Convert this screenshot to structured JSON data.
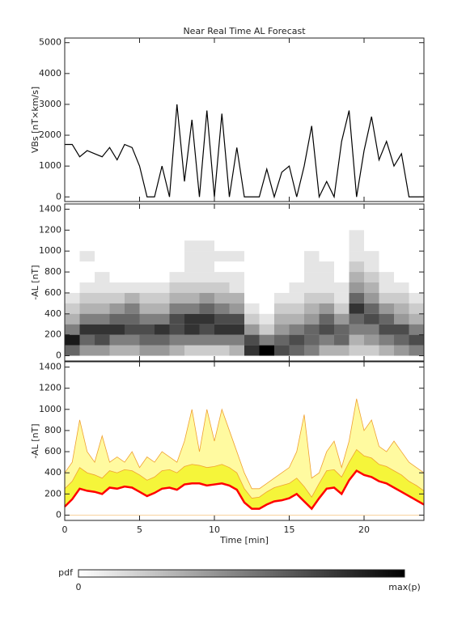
{
  "chart_data": [
    {
      "type": "line",
      "title": "Near Real Time AL Forecast",
      "ylabel": "VBs [nT×km/s]",
      "xlim": [
        0,
        24
      ],
      "xticks": [
        0,
        5,
        10,
        15,
        20
      ],
      "ylim": [
        -150,
        5150
      ],
      "yticks": [
        0,
        1000,
        2000,
        3000,
        4000,
        5000
      ],
      "x": [
        0,
        0.5,
        1,
        1.5,
        2,
        2.5,
        3,
        3.5,
        4,
        4.5,
        5,
        5.5,
        6,
        6.5,
        7,
        7.5,
        8,
        8.5,
        9,
        9.5,
        10,
        10.5,
        11,
        11.5,
        12,
        12.5,
        13,
        13.5,
        14,
        14.5,
        15,
        15.5,
        16,
        16.5,
        17,
        17.5,
        18,
        18.5,
        19,
        19.5,
        20,
        20.5,
        21,
        21.5,
        22,
        22.5,
        23,
        23.5,
        24
      ],
      "series": [
        {
          "color": "#000000",
          "values": [
            1700,
            1700,
            1300,
            1500,
            1400,
            1300,
            1600,
            1200,
            1700,
            1600,
            1000,
            0,
            0,
            1000,
            0,
            3000,
            500,
            2500,
            0,
            2800,
            0,
            2700,
            0,
            1600,
            0,
            0,
            0,
            900,
            0,
            800,
            1000,
            0,
            1000,
            2300,
            0,
            500,
            0,
            1800,
            2800,
            0,
            1500,
            2600,
            1200,
            1800,
            1000,
            1400,
            0,
            0,
            0
          ]
        }
      ]
    },
    {
      "type": "heatmap",
      "ylabel": "-AL [nT]",
      "xlim": [
        0,
        24
      ],
      "xticks": [
        0,
        5,
        10,
        15,
        20
      ],
      "ylim": [
        -50,
        1450
      ],
      "yticks": [
        0,
        200,
        400,
        600,
        800,
        1000,
        1200,
        1400
      ],
      "cmap": [
        "#ffffff",
        "#000000"
      ],
      "x_edges": [
        0,
        1,
        2,
        3,
        4,
        5,
        6,
        7,
        8,
        9,
        10,
        11,
        12,
        13,
        14,
        15,
        16,
        17,
        18,
        19,
        20,
        21,
        22,
        23,
        24
      ],
      "y_edges": [
        0,
        100,
        200,
        300,
        400,
        500,
        600,
        700,
        800,
        900,
        1000,
        1100,
        1200
      ],
      "z": [
        [
          0.6,
          0.9,
          0.5,
          0.3,
          0.2,
          0.1,
          0,
          0,
          0,
          0,
          0,
          0
        ],
        [
          0.4,
          0.6,
          0.8,
          0.5,
          0.3,
          0.2,
          0.1,
          0,
          0,
          0.1,
          0,
          0
        ],
        [
          0.4,
          0.7,
          0.8,
          0.5,
          0.3,
          0.2,
          0.1,
          0.1,
          0,
          0,
          0,
          0
        ],
        [
          0.3,
          0.5,
          0.8,
          0.6,
          0.4,
          0.2,
          0.1,
          0,
          0,
          0,
          0,
          0
        ],
        [
          0.3,
          0.5,
          0.7,
          0.6,
          0.5,
          0.3,
          0.1,
          0,
          0,
          0,
          0,
          0
        ],
        [
          0.4,
          0.6,
          0.7,
          0.5,
          0.3,
          0.2,
          0.1,
          0,
          0,
          0,
          0,
          0
        ],
        [
          0.4,
          0.6,
          0.8,
          0.5,
          0.3,
          0.2,
          0.1,
          0,
          0,
          0,
          0,
          0
        ],
        [
          0.3,
          0.5,
          0.7,
          0.7,
          0.5,
          0.3,
          0.2,
          0.1,
          0,
          0,
          0,
          0
        ],
        [
          0.2,
          0.5,
          0.8,
          0.8,
          0.5,
          0.3,
          0.2,
          0.1,
          0.1,
          0.1,
          0.1,
          0
        ],
        [
          0.2,
          0.5,
          0.7,
          0.8,
          0.6,
          0.4,
          0.2,
          0.1,
          0.1,
          0.1,
          0.1,
          0
        ],
        [
          0.2,
          0.5,
          0.8,
          0.7,
          0.5,
          0.3,
          0.2,
          0.1,
          0,
          0.1,
          0,
          0
        ],
        [
          0.3,
          0.5,
          0.8,
          0.7,
          0.4,
          0.3,
          0.1,
          0.1,
          0,
          0.1,
          0,
          0
        ],
        [
          0.8,
          0.7,
          0.4,
          0.2,
          0.1,
          0,
          0,
          0,
          0,
          0,
          0,
          0
        ],
        [
          1,
          0.5,
          0.2,
          0.1,
          0,
          0,
          0,
          0,
          0,
          0,
          0,
          0
        ],
        [
          0.7,
          0.6,
          0.4,
          0.3,
          0.2,
          0.1,
          0,
          0,
          0,
          0,
          0,
          0
        ],
        [
          0.6,
          0.7,
          0.5,
          0.3,
          0.2,
          0.1,
          0.1,
          0,
          0,
          0,
          0,
          0
        ],
        [
          0.5,
          0.6,
          0.6,
          0.4,
          0.3,
          0.2,
          0.1,
          0.1,
          0.1,
          0.1,
          0,
          0
        ],
        [
          0.3,
          0.5,
          0.7,
          0.6,
          0.4,
          0.2,
          0.1,
          0.1,
          0.1,
          0,
          0,
          0
        ],
        [
          0.3,
          0.6,
          0.6,
          0.4,
          0.2,
          0.1,
          0.1,
          0,
          0,
          0,
          0,
          0
        ],
        [
          0.2,
          0.3,
          0.5,
          0.6,
          0.8,
          0.6,
          0.4,
          0.3,
          0.2,
          0.1,
          0.1,
          0.1
        ],
        [
          0.2,
          0.4,
          0.5,
          0.7,
          0.6,
          0.4,
          0.3,
          0.2,
          0.1,
          0.1,
          0,
          0
        ],
        [
          0.3,
          0.5,
          0.7,
          0.6,
          0.4,
          0.2,
          0.1,
          0.1,
          0,
          0,
          0,
          0
        ],
        [
          0.4,
          0.6,
          0.7,
          0.4,
          0.3,
          0.2,
          0.1,
          0,
          0,
          0,
          0,
          0
        ],
        [
          0.5,
          0.7,
          0.5,
          0.3,
          0.2,
          0.1,
          0,
          0,
          0,
          0,
          0,
          0
        ]
      ]
    },
    {
      "type": "area",
      "ylabel": "-AL [nT]",
      "xlabel": "Time [min]",
      "xlim": [
        0,
        24
      ],
      "xticks": [
        0,
        5,
        10,
        15,
        20
      ],
      "ylim": [
        -50,
        1450
      ],
      "yticks": [
        0,
        200,
        400,
        600,
        800,
        1000,
        1200,
        1400
      ],
      "x": [
        0,
        0.5,
        1,
        1.5,
        2,
        2.5,
        3,
        3.5,
        4,
        4.5,
        5,
        5.5,
        6,
        6.5,
        7,
        7.5,
        8,
        8.5,
        9,
        9.5,
        10,
        10.5,
        11,
        11.5,
        12,
        12.5,
        13,
        13.5,
        14,
        14.5,
        15,
        15.5,
        16,
        16.5,
        17,
        17.5,
        18,
        18.5,
        19,
        19.5,
        20,
        20.5,
        21,
        21.5,
        22,
        22.5,
        23,
        23.5,
        24
      ],
      "bands": [
        {
          "color": "#fffaa0",
          "values": [
            400,
            500,
            900,
            600,
            500,
            750,
            500,
            550,
            500,
            600,
            450,
            550,
            500,
            600,
            550,
            500,
            700,
            1000,
            600,
            1000,
            700,
            1000,
            800,
            600,
            400,
            250,
            250,
            300,
            350,
            400,
            450,
            600,
            950,
            350,
            400,
            600,
            700,
            450,
            700,
            1100,
            800,
            900,
            650,
            600,
            700,
            600,
            500,
            450,
            400
          ]
        },
        {
          "color": "#f5f53a",
          "values": [
            250,
            320,
            450,
            400,
            380,
            350,
            420,
            400,
            430,
            420,
            380,
            330,
            360,
            420,
            430,
            400,
            460,
            480,
            470,
            450,
            460,
            480,
            450,
            400,
            250,
            160,
            170,
            220,
            260,
            280,
            300,
            350,
            270,
            170,
            300,
            420,
            430,
            360,
            500,
            620,
            560,
            540,
            480,
            460,
            420,
            380,
            320,
            280,
            230
          ]
        }
      ],
      "series": [
        {
          "color": "#ff0000",
          "values": [
            80,
            150,
            250,
            230,
            220,
            200,
            260,
            250,
            270,
            260,
            220,
            180,
            210,
            250,
            260,
            240,
            290,
            300,
            300,
            280,
            290,
            300,
            280,
            240,
            120,
            60,
            60,
            100,
            130,
            140,
            160,
            200,
            130,
            60,
            160,
            250,
            260,
            200,
            330,
            420,
            380,
            360,
            320,
            300,
            260,
            220,
            180,
            140,
            100
          ]
        }
      ]
    }
  ],
  "colorbar": {
    "label": "pdf",
    "min_label": "0",
    "max_label": "max(p)"
  }
}
